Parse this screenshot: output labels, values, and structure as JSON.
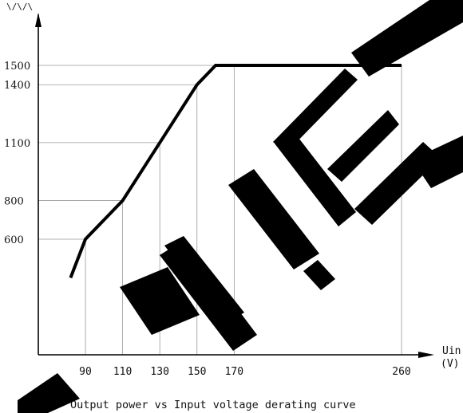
{
  "chart_data": {
    "type": "line",
    "caption": "Output power vs Input voltage derating curve",
    "xlabel": "Uin",
    "xunit": "(V)",
    "ylabel": "",
    "x_ticks": [
      90,
      110,
      130,
      150,
      170,
      260
    ],
    "y_ticks": [
      600,
      800,
      1100,
      1400,
      1500
    ],
    "x_range": [
      72,
      260
    ],
    "y_range": [
      0,
      1600
    ],
    "grid": "dotted reference lines at tick values",
    "series": [
      {
        "points": [
          [
            82,
            400
          ],
          [
            90,
            600
          ],
          [
            110,
            800
          ],
          [
            130,
            1100
          ],
          [
            150,
            1400
          ],
          [
            160,
            1500
          ],
          [
            260,
            1500
          ]
        ],
        "color": "#000000"
      }
    ]
  },
  "watermark": {
    "text": "NUET",
    "color": "#000000"
  }
}
